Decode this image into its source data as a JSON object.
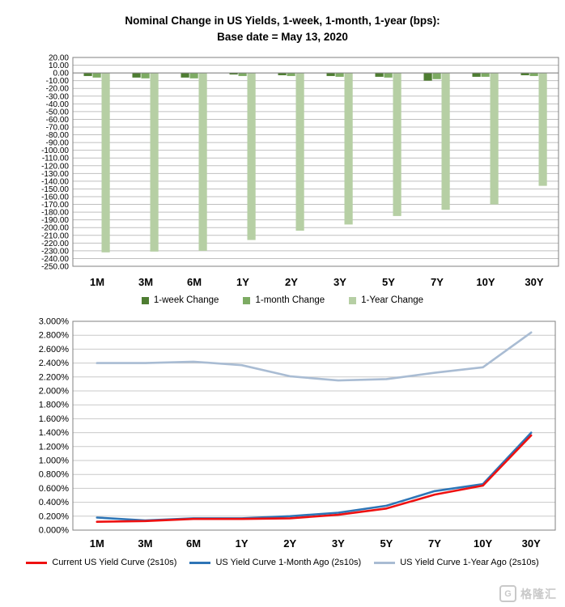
{
  "page": {
    "background": "#ffffff"
  },
  "chart_data": [
    {
      "type": "bar",
      "title": "Nominal Change in US Yields, 1-week, 1-month, 1-year (bps):",
      "subtitle": "Base date = May 13, 2020",
      "categories": [
        "1M",
        "3M",
        "6M",
        "1Y",
        "2Y",
        "3Y",
        "5Y",
        "7Y",
        "10Y",
        "30Y"
      ],
      "ylim": [
        -250,
        20
      ],
      "ytick_step": 10,
      "ytick_format": "fixed2",
      "grid_color": "#bfbfbf",
      "border_color": "#808080",
      "legend_position": "bottom",
      "series": [
        {
          "name": "1-week Change",
          "color": "#4e7d32",
          "values": [
            -4,
            -6,
            -6,
            -2,
            -3,
            -4,
            -5,
            -10,
            -5,
            -3
          ]
        },
        {
          "name": "1-month Change",
          "color": "#7dab63",
          "values": [
            -6,
            -7,
            -7,
            -4,
            -4,
            -5,
            -6,
            -8,
            -5,
            -4
          ]
        },
        {
          "name": "1-Year Change",
          "color": "#b6cfa4",
          "values": [
            -232,
            -231,
            -230,
            -216,
            -204,
            -196,
            -185,
            -177,
            -170,
            -146
          ]
        }
      ]
    },
    {
      "type": "line",
      "title": "",
      "categories": [
        "1M",
        "3M",
        "6M",
        "1Y",
        "2Y",
        "3Y",
        "5Y",
        "7Y",
        "10Y",
        "30Y"
      ],
      "ylim": [
        0,
        3.0
      ],
      "ytick_step": 0.2,
      "ytick_format": "percent3",
      "grid_color": "#c9c9c9",
      "border_color": "#808080",
      "legend_position": "bottom",
      "series": [
        {
          "name": "Current US Yield Curve (2s10s)",
          "color": "#ee1111",
          "values": [
            0.12,
            0.13,
            0.16,
            0.16,
            0.17,
            0.22,
            0.31,
            0.51,
            0.64,
            1.36
          ]
        },
        {
          "name": "US Yield Curve 1-Month Ago (2s10s)",
          "color": "#2e75b6",
          "values": [
            0.18,
            0.14,
            0.17,
            0.17,
            0.2,
            0.25,
            0.35,
            0.56,
            0.66,
            1.4
          ]
        },
        {
          "name": "US Yield Curve 1-Year Ago (2s10s)",
          "color": "#a9bcd3",
          "values": [
            2.4,
            2.4,
            2.42,
            2.37,
            2.21,
            2.15,
            2.17,
            2.26,
            2.34,
            2.84
          ]
        }
      ]
    }
  ],
  "watermark": {
    "icon_letter": "G",
    "text": "格隆汇"
  }
}
